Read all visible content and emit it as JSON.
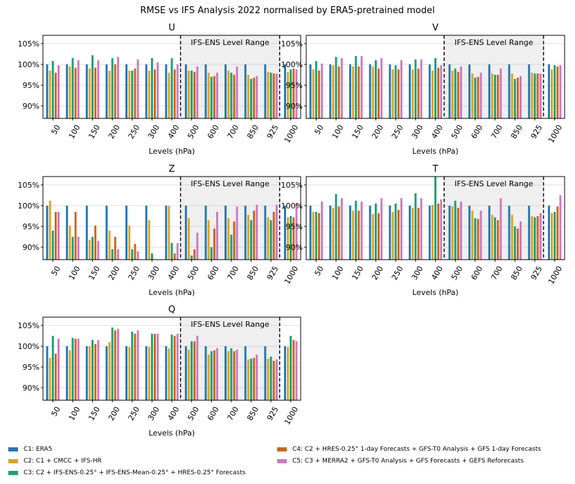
{
  "suptitle": "RMSE vs IFS Analysis 2022 normalised by ERA5-pretrained model",
  "colors": {
    "C1": "#1f77b4",
    "C2": "#e0a21b",
    "C3": "#17a179",
    "C4": "#d2621b",
    "C5": "#cc79c1",
    "shade": "#efefef"
  },
  "legend": [
    {
      "key": "C1",
      "label": "C1: ERA5"
    },
    {
      "key": "C2",
      "label": "C2: C1 + CMCC + IFS-HR"
    },
    {
      "key": "C3",
      "label": "C3: C2 + IFS-ENS-0.25° + IFS-ENS-Mean-0.25° + HRES-0.25° Forecasts"
    },
    {
      "key": "C4",
      "label": "C4: C2 + HRES-0.25° 1-day Forecasts + GFS-T0 Analysis + GFS 1-day Forecasts"
    },
    {
      "key": "C5",
      "label": "C5: C3 + MERRA2 + GFS-T0 Analysis + GFS Forecasts + GEFS Reforecasts"
    }
  ],
  "chart_data": [
    {
      "type": "bar",
      "title": "U",
      "xlabel": "Levels (hPa)",
      "categories": [
        "50",
        "100",
        "150",
        "200",
        "250",
        "300",
        "400",
        "500",
        "600",
        "700",
        "850",
        "925",
        "1000"
      ],
      "yticks": [
        "105%",
        "100%",
        "95%",
        "90%"
      ],
      "ylim": [
        87,
        107
      ],
      "shade_label": "IFS-ENS Level Range",
      "shade_range": [
        "500",
        "925"
      ],
      "series": [
        {
          "key": "C1",
          "values": [
            100,
            100,
            100,
            100,
            100,
            100,
            100,
            100,
            100,
            100,
            100,
            100,
            100
          ]
        },
        {
          "key": "C2",
          "values": [
            98.5,
            99.5,
            99,
            98.5,
            98.5,
            98.5,
            98,
            98.5,
            98,
            98.5,
            97.5,
            98.2,
            98.2
          ]
        },
        {
          "key": "C3",
          "values": [
            100.8,
            101.5,
            102.2,
            101.5,
            98.5,
            101.5,
            101.5,
            98.5,
            97,
            98,
            96.5,
            98,
            98.8
          ]
        },
        {
          "key": "C4",
          "values": [
            98,
            99.2,
            99.2,
            100,
            99,
            98.8,
            98.8,
            98.2,
            97.2,
            97.5,
            96.8,
            97.8,
            99
          ]
        },
        {
          "key": "C5",
          "values": [
            99.8,
            101,
            101,
            101.8,
            101.2,
            100.5,
            100,
            99.5,
            98,
            99.5,
            97.2,
            97.8,
            98.8
          ]
        }
      ]
    },
    {
      "type": "bar",
      "title": "V",
      "xlabel": "Levels (hPa)",
      "categories": [
        "50",
        "100",
        "150",
        "200",
        "250",
        "300",
        "400",
        "500",
        "600",
        "700",
        "850",
        "925",
        "1000"
      ],
      "yticks": [
        "105%",
        "100%",
        "95%",
        "90%"
      ],
      "ylim": [
        87,
        107
      ],
      "shade_label": "IFS-ENS Level Range",
      "shade_range": [
        "500",
        "925"
      ],
      "series": [
        {
          "key": "C1",
          "values": [
            100,
            100,
            100,
            100,
            100,
            100,
            100,
            100,
            100,
            100,
            100,
            100,
            100
          ]
        },
        {
          "key": "C2",
          "values": [
            98.8,
            99.8,
            99.5,
            99.5,
            98.8,
            98.8,
            98.5,
            98.5,
            97.8,
            97.8,
            97.8,
            98,
            98.8
          ]
        },
        {
          "key": "C3",
          "values": [
            100.8,
            101.8,
            102,
            101,
            99.8,
            101.2,
            101.5,
            99,
            96.8,
            97.5,
            96.5,
            97.8,
            99.8
          ]
        },
        {
          "key": "C4",
          "values": [
            98.5,
            99.5,
            99.5,
            99,
            98.8,
            99,
            99.2,
            98.2,
            97,
            97.5,
            96.8,
            97.8,
            99.5
          ]
        },
        {
          "key": "C5",
          "values": [
            100.2,
            101.5,
            102,
            101.5,
            101,
            101.2,
            99.8,
            99.5,
            98,
            99,
            97.2,
            97.8,
            99.8
          ]
        }
      ]
    },
    {
      "type": "bar",
      "title": "Z",
      "xlabel": "Levels (hPa)",
      "categories": [
        "50",
        "100",
        "150",
        "200",
        "250",
        "300",
        "400",
        "500",
        "600",
        "700",
        "850",
        "925",
        "1000"
      ],
      "yticks": [
        "105%",
        "100%",
        "95%",
        "90%"
      ],
      "ylim": [
        87,
        107
      ],
      "shade_label": "IFS-ENS Level Range",
      "shade_range": [
        "500",
        "925"
      ],
      "series": [
        {
          "key": "C1",
          "values": [
            100,
            100,
            100,
            100,
            100,
            100,
            100,
            100,
            100,
            100,
            100,
            100,
            100
          ]
        },
        {
          "key": "C2",
          "values": [
            101.2,
            95.2,
            91.8,
            94,
            95.2,
            96.5,
            100,
            97,
            96.5,
            97,
            97.8,
            97.2,
            97.2
          ]
        },
        {
          "key": "C3",
          "values": [
            94,
            92.5,
            92.5,
            89.5,
            89.5,
            88.5,
            91,
            88,
            90,
            93,
            96.5,
            96.5,
            97.5
          ]
        },
        {
          "key": "C4",
          "values": [
            98.5,
            98.5,
            95.2,
            92.5,
            90.8,
            87,
            88.5,
            89.5,
            94.5,
            96.2,
            98.8,
            98.5,
            97.2
          ]
        },
        {
          "key": "C5",
          "values": [
            98.5,
            92.5,
            91.5,
            89.5,
            89,
            86.8,
            91,
            93.5,
            98.5,
            99.8,
            100.2,
            100.2,
            100.5
          ]
        }
      ]
    },
    {
      "type": "bar",
      "title": "T",
      "xlabel": "Levels (hPa)",
      "categories": [
        "50",
        "100",
        "150",
        "200",
        "250",
        "300",
        "400",
        "500",
        "600",
        "700",
        "850",
        "925",
        "1000"
      ],
      "yticks": [
        "105%",
        "100%",
        "95%",
        "90%"
      ],
      "ylim": [
        87,
        107
      ],
      "shade_label": "IFS-ENS Level Range",
      "shade_range": [
        "500",
        "925"
      ],
      "series": [
        {
          "key": "C1",
          "values": [
            100,
            100,
            100,
            100,
            100,
            100,
            100,
            100,
            100,
            100,
            100,
            100,
            100
          ]
        },
        {
          "key": "C2",
          "values": [
            98.5,
            99.5,
            98.8,
            98,
            98.5,
            99.5,
            100.2,
            99.8,
            98.8,
            97.8,
            97.8,
            97.5,
            98.2
          ]
        },
        {
          "key": "C3",
          "values": [
            98.5,
            102.8,
            101.2,
            100.5,
            100.5,
            103,
            107,
            101.2,
            97,
            97.2,
            95,
            97.2,
            98.5
          ]
        },
        {
          "key": "C4",
          "values": [
            98.2,
            99.8,
            98.8,
            98.2,
            99,
            99.5,
            100.5,
            99.5,
            96.8,
            96.5,
            94.5,
            97.5,
            99.8
          ]
        },
        {
          "key": "C5",
          "values": [
            101,
            101.8,
            101,
            101.8,
            101.8,
            101.8,
            101.5,
            101,
            98.8,
            101.8,
            96.2,
            98.2,
            102.5
          ]
        }
      ]
    },
    {
      "type": "bar",
      "title": "Q",
      "xlabel": "Levels (hPa)",
      "categories": [
        "50",
        "100",
        "150",
        "200",
        "250",
        "300",
        "400",
        "500",
        "600",
        "700",
        "850",
        "925",
        "1000"
      ],
      "yticks": [
        "105%",
        "100%",
        "95%",
        "90%"
      ],
      "ylim": [
        87,
        107
      ],
      "shade_label": "IFS-ENS Level Range",
      "shade_range": [
        "500",
        "925"
      ],
      "series": [
        {
          "key": "C1",
          "values": [
            100,
            100,
            100,
            100,
            100,
            100,
            100,
            100,
            100,
            100,
            100,
            100,
            100
          ]
        },
        {
          "key": "C2",
          "values": [
            97.2,
            99,
            100,
            101,
            99.8,
            99.8,
            99.5,
            99.2,
            98,
            98.8,
            96.8,
            97,
            99.8
          ]
        },
        {
          "key": "C3",
          "values": [
            102.5,
            102,
            101.5,
            104.5,
            103.5,
            103,
            102.8,
            101.2,
            98.8,
            99.5,
            97,
            97.5,
            102.5
          ]
        },
        {
          "key": "C4",
          "values": [
            98.2,
            101.8,
            100.5,
            103.8,
            103,
            103,
            102.5,
            101.2,
            99,
            98.8,
            97.2,
            96.5,
            101.5
          ]
        },
        {
          "key": "C5",
          "values": [
            101.8,
            101.8,
            101.5,
            104.2,
            103.8,
            103,
            103,
            102.5,
            99.5,
            99.2,
            98,
            96.8,
            101.2
          ]
        }
      ]
    }
  ]
}
